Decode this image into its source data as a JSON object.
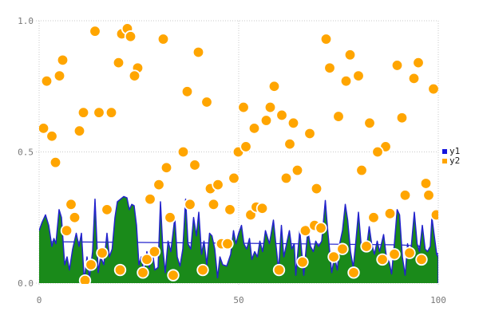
{
  "legend": {
    "items": [
      {
        "label": "y1",
        "color": "#1414dd"
      },
      {
        "label": "y2",
        "color": "#ffa500"
      }
    ]
  },
  "chart_data": {
    "type": "mixed",
    "title": "",
    "xlabel": "",
    "ylabel": "",
    "xlim": [
      0,
      100
    ],
    "ylim": [
      0,
      1
    ],
    "x_ticks": [
      0,
      50,
      100
    ],
    "x_tick_labels": [
      "0",
      "50",
      "100"
    ],
    "y_ticks": [
      0,
      0.5,
      1
    ],
    "y_tick_labels": [
      "0.0",
      "0.5",
      "1.0"
    ],
    "grid": true,
    "grid_color": "#c9c9c9",
    "legend_position": "right",
    "series": [
      {
        "name": "y1",
        "type": "area",
        "fill_color": "#1a8a1a",
        "line_color": "#2222cc",
        "points": [
          [
            0,
            0.2
          ],
          [
            0.7,
            0.23
          ],
          [
            1.6,
            0.26
          ],
          [
            2.4,
            0.22
          ],
          [
            3.2,
            0.14
          ],
          [
            3.7,
            0.17
          ],
          [
            4.2,
            0.15
          ],
          [
            5,
            0.28
          ],
          [
            5.6,
            0.25
          ],
          [
            6.4,
            0.07
          ],
          [
            7,
            0.1
          ],
          [
            7.6,
            0.05
          ],
          [
            8.4,
            0.13
          ],
          [
            9.3,
            0.19
          ],
          [
            10,
            0.14
          ],
          [
            10.6,
            0.19
          ],
          [
            11.3,
            0.01
          ],
          [
            12,
            0.1
          ],
          [
            12.6,
            0.02
          ],
          [
            13.4,
            0.12
          ],
          [
            14,
            0.32
          ],
          [
            14.8,
            0.04
          ],
          [
            15.4,
            0.1
          ],
          [
            16.2,
            0.07
          ],
          [
            17,
            0.19
          ],
          [
            17.6,
            0.1
          ],
          [
            18.3,
            0.13
          ],
          [
            19,
            0.25
          ],
          [
            19.6,
            0.31
          ],
          [
            20.4,
            0.32
          ],
          [
            21.2,
            0.33
          ],
          [
            22,
            0.325
          ],
          [
            22.6,
            0.28
          ],
          [
            23.2,
            0.3
          ],
          [
            23.8,
            0.295
          ],
          [
            24.4,
            0.22
          ],
          [
            25,
            0.07
          ],
          [
            25.6,
            0.1
          ],
          [
            26.3,
            0.04
          ],
          [
            27,
            0.12
          ],
          [
            27.6,
            0.06
          ],
          [
            28.3,
            0.13
          ],
          [
            29,
            0.05
          ],
          [
            29.8,
            0.06
          ],
          [
            30.4,
            0.31
          ],
          [
            31,
            0.13
          ],
          [
            31.6,
            0.04
          ],
          [
            32.3,
            0.16
          ],
          [
            33,
            0.12
          ],
          [
            34,
            0.25
          ],
          [
            34.6,
            0.1
          ],
          [
            35.3,
            0.065
          ],
          [
            36,
            0.13
          ],
          [
            36.7,
            0.32
          ],
          [
            37.3,
            0.15
          ],
          [
            38,
            0.13
          ],
          [
            38.7,
            0.25
          ],
          [
            39.4,
            0.18
          ],
          [
            40,
            0.27
          ],
          [
            40.7,
            0.11
          ],
          [
            41.3,
            0.16
          ],
          [
            42,
            0.07
          ],
          [
            42.7,
            0.19
          ],
          [
            43.3,
            0.18
          ],
          [
            44,
            0.13
          ],
          [
            44.7,
            0.02
          ],
          [
            45.3,
            0.1
          ],
          [
            46,
            0.07
          ],
          [
            47,
            0.065
          ],
          [
            48,
            0.11
          ],
          [
            48.7,
            0.2
          ],
          [
            49.3,
            0.15
          ],
          [
            50,
            0.19
          ],
          [
            50.7,
            0.22
          ],
          [
            51.3,
            0.15
          ],
          [
            52,
            0.13
          ],
          [
            52.7,
            0.17
          ],
          [
            53.3,
            0.09
          ],
          [
            54,
            0.12
          ],
          [
            54.7,
            0.1
          ],
          [
            55.3,
            0.16
          ],
          [
            56,
            0.12
          ],
          [
            56.7,
            0.2
          ],
          [
            57.7,
            0.15
          ],
          [
            58.7,
            0.24
          ],
          [
            59.3,
            0.15
          ],
          [
            60,
            0.05
          ],
          [
            60.7,
            0.22
          ],
          [
            61.3,
            0.1
          ],
          [
            62,
            0.15
          ],
          [
            62.7,
            0.2
          ],
          [
            63.3,
            0.13
          ],
          [
            63.9,
            0.15
          ],
          [
            64.3,
            0.03
          ],
          [
            65.3,
            0.2
          ],
          [
            66.3,
            0.03
          ],
          [
            67.3,
            0.2
          ],
          [
            68,
            0.14
          ],
          [
            68.7,
            0.12
          ],
          [
            69.3,
            0.16
          ],
          [
            70,
            0.14
          ],
          [
            70.8,
            0.16
          ],
          [
            71.7,
            0.315
          ],
          [
            72.3,
            0.2
          ],
          [
            73.3,
            0.04
          ],
          [
            74,
            0.1
          ],
          [
            74.7,
            0.05
          ],
          [
            75.3,
            0.15
          ],
          [
            76,
            0.2
          ],
          [
            76.7,
            0.3
          ],
          [
            77.3,
            0.24
          ],
          [
            78,
            0.12
          ],
          [
            78.7,
            0.06
          ],
          [
            79.3,
            0.15
          ],
          [
            80,
            0.27
          ],
          [
            80.7,
            0.14
          ],
          [
            81.3,
            0.12
          ],
          [
            82,
            0.13
          ],
          [
            82.7,
            0.215
          ],
          [
            83.3,
            0.15
          ],
          [
            84,
            0.11
          ],
          [
            84.7,
            0.16
          ],
          [
            85.3,
            0.12
          ],
          [
            86.3,
            0.185
          ],
          [
            87,
            0.1
          ],
          [
            87.7,
            0.08
          ],
          [
            88.3,
            0.035
          ],
          [
            89,
            0.15
          ],
          [
            89.7,
            0.28
          ],
          [
            90.3,
            0.26
          ],
          [
            91,
            0.1
          ],
          [
            91.7,
            0.03
          ],
          [
            92.3,
            0.15
          ],
          [
            93,
            0.1
          ],
          [
            94,
            0.27
          ],
          [
            94.7,
            0.15
          ],
          [
            95.3,
            0.12
          ],
          [
            96,
            0.22
          ],
          [
            96.7,
            0.13
          ],
          [
            97.3,
            0.12
          ],
          [
            98,
            0.14
          ],
          [
            98.4,
            0.25
          ],
          [
            99,
            0.18
          ],
          [
            99.6,
            0.11
          ],
          [
            100,
            0.1
          ]
        ]
      },
      {
        "name": "y1-mean-line",
        "type": "line",
        "color": "#2222cc",
        "points": [
          [
            0,
            0.158
          ],
          [
            50,
            0.152
          ],
          [
            90,
            0.146
          ],
          [
            95.2,
            0.142
          ],
          [
            95.8,
            0.108
          ],
          [
            96.5,
            0.134
          ],
          [
            97.2,
            0.1
          ],
          [
            98,
            0.135
          ],
          [
            100,
            0.11
          ]
        ]
      },
      {
        "name": "y2",
        "type": "scatter",
        "color": "#ffa500",
        "marker_edge_color": "#ffffff",
        "points": [
          [
            1.9,
            0.77
          ],
          [
            5.1,
            0.79
          ],
          [
            5.9,
            0.85
          ],
          [
            14,
            0.96
          ],
          [
            20.7,
            0.95
          ],
          [
            22.1,
            0.97
          ],
          [
            22.9,
            0.94
          ],
          [
            19.9,
            0.84
          ],
          [
            24.7,
            0.82
          ],
          [
            23.9,
            0.79
          ],
          [
            31.1,
            0.93
          ],
          [
            37.1,
            0.73
          ],
          [
            39.9,
            0.88
          ],
          [
            42,
            0.69
          ],
          [
            58.9,
            0.75
          ],
          [
            71.9,
            0.93
          ],
          [
            77.9,
            0.87
          ],
          [
            72.8,
            0.82
          ],
          [
            76.9,
            0.77
          ],
          [
            80,
            0.79
          ],
          [
            89.7,
            0.83
          ],
          [
            95,
            0.84
          ],
          [
            93.9,
            0.78
          ],
          [
            98.8,
            0.74
          ],
          [
            1.1,
            0.59
          ],
          [
            3.2,
            0.56
          ],
          [
            11.1,
            0.65
          ],
          [
            15,
            0.65
          ],
          [
            18.1,
            0.65
          ],
          [
            10.1,
            0.58
          ],
          [
            4.1,
            0.46
          ],
          [
            31.9,
            0.44
          ],
          [
            30,
            0.375
          ],
          [
            51.2,
            0.67
          ],
          [
            57.9,
            0.67
          ],
          [
            60.8,
            0.64
          ],
          [
            53.9,
            0.59
          ],
          [
            56.9,
            0.62
          ],
          [
            63.7,
            0.61
          ],
          [
            67.8,
            0.57
          ],
          [
            36.1,
            0.5
          ],
          [
            49.9,
            0.5
          ],
          [
            51.8,
            0.52
          ],
          [
            62.8,
            0.53
          ],
          [
            39,
            0.45
          ],
          [
            64.7,
            0.43
          ],
          [
            61.9,
            0.4
          ],
          [
            48.8,
            0.4
          ],
          [
            42.9,
            0.36
          ],
          [
            44.8,
            0.375
          ],
          [
            75,
            0.635
          ],
          [
            82.8,
            0.61
          ],
          [
            90.9,
            0.63
          ],
          [
            86.8,
            0.52
          ],
          [
            84.8,
            0.5
          ],
          [
            80.8,
            0.43
          ],
          [
            69.5,
            0.36
          ],
          [
            96.9,
            0.38
          ],
          [
            91.7,
            0.335
          ],
          [
            97.6,
            0.335
          ],
          [
            27.8,
            0.32
          ],
          [
            8,
            0.3
          ],
          [
            8.9,
            0.25
          ],
          [
            6.9,
            0.2
          ],
          [
            17,
            0.28
          ],
          [
            15.8,
            0.115
          ],
          [
            13,
            0.07
          ],
          [
            11.5,
            0.01
          ],
          [
            20.3,
            0.05
          ],
          [
            26,
            0.04
          ],
          [
            27,
            0.09
          ],
          [
            28.9,
            0.12
          ],
          [
            32.8,
            0.25
          ],
          [
            33.6,
            0.03
          ],
          [
            37.8,
            0.3
          ],
          [
            43.7,
            0.3
          ],
          [
            47.8,
            0.28
          ],
          [
            45.7,
            0.15
          ],
          [
            47.2,
            0.15
          ],
          [
            41,
            0.05
          ],
          [
            53,
            0.26
          ],
          [
            54.4,
            0.29
          ],
          [
            55.9,
            0.285
          ],
          [
            60.1,
            0.05
          ],
          [
            66,
            0.08
          ],
          [
            66.7,
            0.2
          ],
          [
            69,
            0.22
          ],
          [
            70.6,
            0.21
          ],
          [
            73.8,
            0.1
          ],
          [
            76,
            0.13
          ],
          [
            78.8,
            0.04
          ],
          [
            82,
            0.14
          ],
          [
            83.8,
            0.25
          ],
          [
            86,
            0.09
          ],
          [
            87.9,
            0.265
          ],
          [
            89,
            0.11
          ],
          [
            92.8,
            0.115
          ],
          [
            95.8,
            0.09
          ],
          [
            99.5,
            0.26
          ]
        ]
      }
    ]
  }
}
